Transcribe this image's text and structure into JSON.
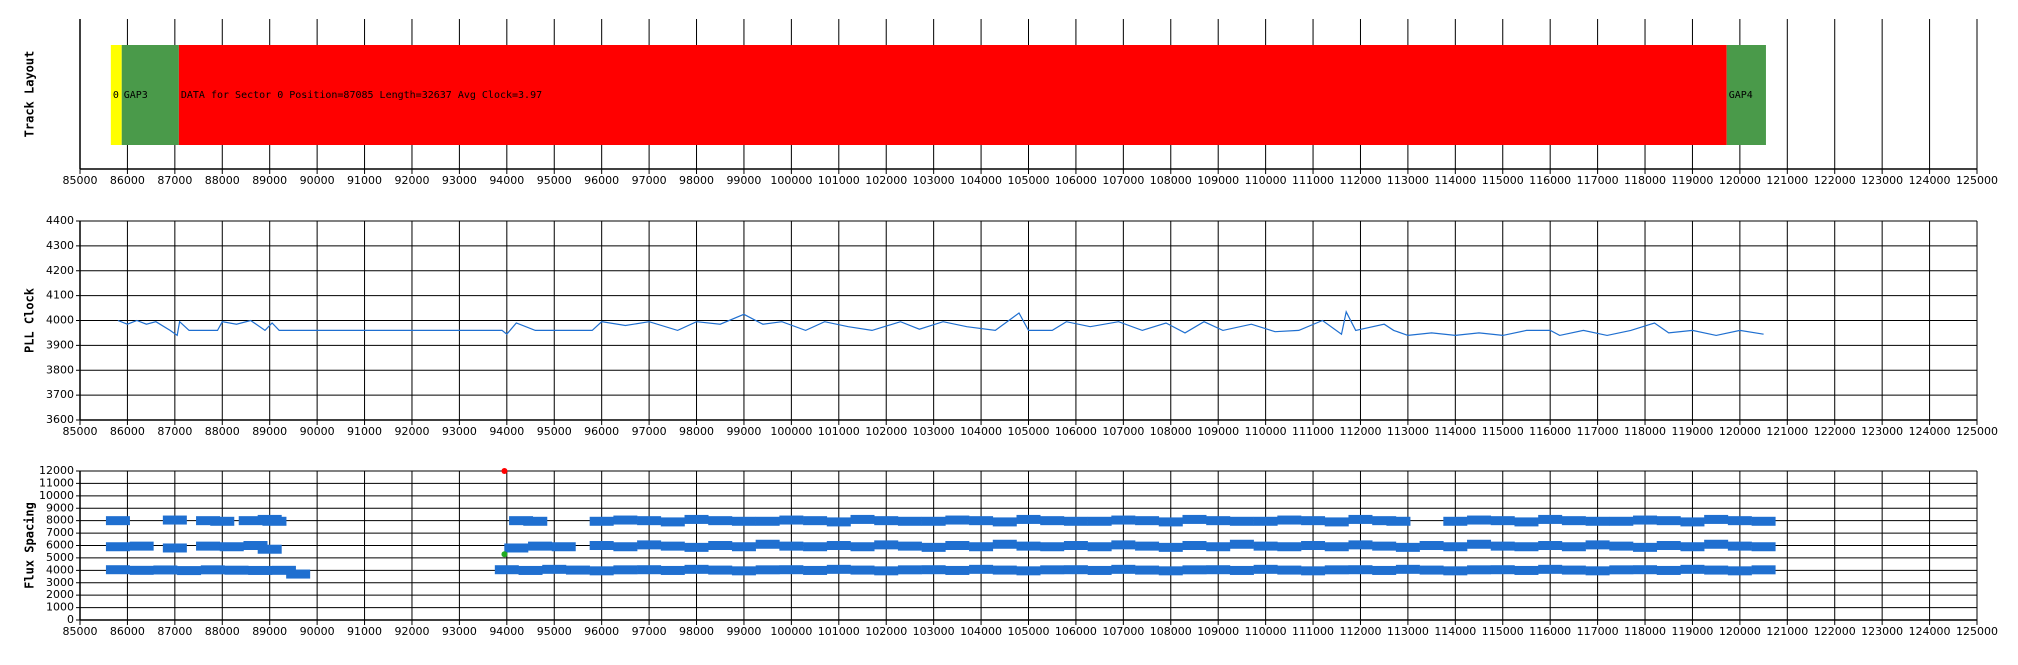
{
  "chart_data": [
    {
      "type": "timeline",
      "ylabel": "Track Layout",
      "grid": true,
      "xlim": [
        85000,
        125000
      ],
      "xticks": [
        85000,
        86000,
        87000,
        88000,
        89000,
        90000,
        91000,
        92000,
        93000,
        94000,
        95000,
        96000,
        97000,
        98000,
        99000,
        100000,
        101000,
        102000,
        103000,
        104000,
        105000,
        106000,
        107000,
        108000,
        109000,
        110000,
        111000,
        112000,
        113000,
        114000,
        115000,
        116000,
        117000,
        118000,
        119000,
        120000,
        121000,
        122000,
        123000,
        124000,
        125000
      ],
      "segments": [
        {
          "label": "0",
          "start": 85650,
          "end": 85880,
          "color": "#ffff00"
        },
        {
          "label": "GAP3",
          "start": 85880,
          "end": 87085,
          "color": "#4a9a4a"
        },
        {
          "label": "DATA for Sector 0 Position=87085 Length=32637 Avg Clock=3.97",
          "start": 87085,
          "end": 119722,
          "color": "#ff0000"
        },
        {
          "label": "GAP4",
          "start": 119722,
          "end": 120550,
          "color": "#4a9a4a"
        }
      ]
    },
    {
      "type": "line",
      "ylabel": "PLL Clock",
      "grid": true,
      "xlim": [
        85000,
        125000
      ],
      "xticks": [
        85000,
        86000,
        87000,
        88000,
        89000,
        90000,
        91000,
        92000,
        93000,
        94000,
        95000,
        96000,
        97000,
        98000,
        99000,
        100000,
        101000,
        102000,
        103000,
        104000,
        105000,
        106000,
        107000,
        108000,
        109000,
        110000,
        111000,
        112000,
        113000,
        114000,
        115000,
        116000,
        117000,
        118000,
        119000,
        120000,
        121000,
        122000,
        123000,
        124000,
        125000
      ],
      "ylim": [
        3600,
        4400
      ],
      "yticks": [
        3600,
        3700,
        3800,
        3900,
        4000,
        4100,
        4200,
        4300,
        4400
      ],
      "series": [
        {
          "color": "#1f6fd0",
          "x": [
            85800,
            86000,
            86200,
            86400,
            86600,
            86900,
            87050,
            87100,
            87300,
            87900,
            88000,
            88300,
            88600,
            88900,
            89050,
            89200,
            93900,
            94000,
            94200,
            94600,
            95800,
            96000,
            96500,
            97000,
            97600,
            98000,
            98500,
            99000,
            99400,
            99800,
            100300,
            100700,
            101200,
            101700,
            102300,
            102700,
            103200,
            103700,
            104300,
            104800,
            105000,
            105500,
            105800,
            106300,
            106900,
            107400,
            107900,
            108300,
            108700,
            109100,
            109700,
            110200,
            110700,
            111200,
            111600,
            111700,
            111900,
            112500,
            112700,
            113000,
            113500,
            114000,
            114500,
            115000,
            115500,
            116000,
            116200,
            116700,
            117200,
            117700,
            118200,
            118500,
            119000,
            119500,
            120000,
            120500
          ],
          "values": [
            4000,
            3985,
            4000,
            3985,
            3995,
            3960,
            3940,
            3995,
            3960,
            3960,
            3995,
            3985,
            4000,
            3960,
            3990,
            3960,
            3960,
            3945,
            3990,
            3960,
            3960,
            3995,
            3980,
            3995,
            3960,
            3995,
            3985,
            4025,
            3985,
            3995,
            3960,
            3995,
            3975,
            3960,
            3995,
            3965,
            3995,
            3975,
            3960,
            4030,
            3960,
            3960,
            3995,
            3975,
            3995,
            3960,
            3990,
            3950,
            3995,
            3960,
            3985,
            3955,
            3960,
            4000,
            3945,
            4035,
            3960,
            3985,
            3960,
            3940,
            3950,
            3940,
            3950,
            3940,
            3960,
            3960,
            3940,
            3960,
            3940,
            3960,
            3990,
            3950,
            3960,
            3940,
            3960,
            3945
          ]
        }
      ]
    },
    {
      "type": "scatter",
      "ylabel": "Flux Spacing",
      "grid": true,
      "xlim": [
        85000,
        125000
      ],
      "xticks": [
        85000,
        86000,
        87000,
        88000,
        89000,
        90000,
        91000,
        92000,
        93000,
        94000,
        95000,
        96000,
        97000,
        98000,
        99000,
        100000,
        101000,
        102000,
        103000,
        104000,
        105000,
        106000,
        107000,
        108000,
        109000,
        110000,
        111000,
        112000,
        113000,
        114000,
        115000,
        116000,
        117000,
        118000,
        119000,
        120000,
        121000,
        122000,
        123000,
        124000,
        125000
      ],
      "ylim": [
        0,
        12000
      ],
      "yticks": [
        0,
        1000,
        2000,
        3000,
        4000,
        5000,
        6000,
        7000,
        8000,
        9000,
        10000,
        11000,
        12000
      ],
      "series": [
        {
          "color": "#1f6fd0",
          "x": [
            85800,
            86300,
            86800,
            87300,
            87800,
            88300,
            88800,
            89300,
            89600,
            94000,
            94500,
            95000,
            95500,
            96000,
            96500,
            97000,
            97500,
            98000,
            98500,
            99000,
            99500,
            100000,
            100500,
            101000,
            101500,
            102000,
            102500,
            103000,
            103500,
            104000,
            104500,
            105000,
            105500,
            106000,
            106500,
            107000,
            107500,
            108000,
            108500,
            109000,
            109500,
            110000,
            110500,
            111000,
            111500,
            112000,
            112500,
            113000,
            113500,
            114000,
            114500,
            115000,
            115500,
            116000,
            116500,
            117000,
            117500,
            118000,
            118500,
            119000,
            119500,
            120000,
            120500
          ],
          "values": [
            4050,
            4000,
            4030,
            3980,
            4040,
            4010,
            3990,
            4000,
            3700,
            4050,
            3990,
            4080,
            4020,
            3960,
            4040,
            4050,
            3990,
            4080,
            4020,
            3960,
            4040,
            4050,
            3990,
            4080,
            4020,
            3960,
            4040,
            4050,
            3990,
            4080,
            4020,
            3960,
            4040,
            4050,
            3990,
            4080,
            4020,
            3960,
            4040,
            4050,
            3990,
            4080,
            4020,
            3960,
            4040,
            4050,
            3990,
            4080,
            4020,
            3960,
            4040,
            4050,
            3990,
            4080,
            4020,
            3960,
            4040,
            4050,
            3990,
            4080,
            4020,
            3960,
            4040
          ]
        },
        {
          "color": "#1f6fd0",
          "x": [
            85800,
            86300,
            87000,
            87700,
            88200,
            88700,
            89000,
            94200,
            94700,
            95200,
            96000,
            96500,
            97000,
            97500,
            98000,
            98500,
            99000,
            99500,
            100000,
            100500,
            101000,
            101500,
            102000,
            102500,
            103000,
            103500,
            104000,
            104500,
            105000,
            105500,
            106000,
            106500,
            107000,
            107500,
            108000,
            108500,
            109000,
            109500,
            110000,
            110500,
            111000,
            111500,
            112000,
            112500,
            113000,
            113500,
            114000,
            114500,
            115000,
            115500,
            116000,
            116500,
            117000,
            117500,
            118000,
            118500,
            119000,
            119500,
            120000,
            120500
          ],
          "values": [
            5900,
            5950,
            5800,
            5950,
            5900,
            6000,
            5700,
            5800,
            5950,
            5900,
            6000,
            5900,
            6050,
            5950,
            5850,
            6000,
            5900,
            6100,
            5950,
            5900,
            6000,
            5900,
            6050,
            5950,
            5850,
            6000,
            5900,
            6100,
            5950,
            5900,
            6000,
            5900,
            6050,
            5950,
            5850,
            6000,
            5900,
            6100,
            5950,
            5900,
            6000,
            5900,
            6050,
            5950,
            5850,
            6000,
            5900,
            6100,
            5950,
            5900,
            6000,
            5900,
            6050,
            5950,
            5850,
            6000,
            5900,
            6100,
            5950,
            5900
          ]
        },
        {
          "color": "#1f6fd0",
          "x": [
            85800,
            87000,
            87700,
            88000,
            88600,
            89000,
            89100,
            94300,
            94600,
            96000,
            96500,
            97000,
            97500,
            98000,
            98500,
            99000,
            99500,
            100000,
            100500,
            101000,
            101500,
            102000,
            102500,
            103000,
            103500,
            104000,
            104500,
            105000,
            105500,
            106000,
            106500,
            107000,
            107500,
            108000,
            108500,
            109000,
            109500,
            110000,
            110500,
            111000,
            111500,
            112000,
            112500,
            112800,
            114000,
            114500,
            115000,
            115500,
            116000,
            116500,
            117000,
            117500,
            118000,
            118500,
            119000,
            119500,
            120000,
            120500
          ],
          "values": [
            8000,
            8050,
            8000,
            7950,
            8000,
            8100,
            7950,
            8000,
            7950,
            7950,
            8050,
            8000,
            7900,
            8100,
            8000,
            7950,
            7950,
            8050,
            8000,
            7900,
            8100,
            8000,
            7950,
            7950,
            8050,
            8000,
            7900,
            8100,
            8000,
            7950,
            7950,
            8050,
            8000,
            7900,
            8100,
            8000,
            7950,
            7950,
            8050,
            8000,
            7900,
            8100,
            8000,
            7950,
            7950,
            8050,
            8000,
            7900,
            8100,
            8000,
            7950,
            7950,
            8050,
            8000,
            7900,
            8100,
            8000,
            7950
          ]
        },
        {
          "color": "#ff0000",
          "x": [
            93950
          ],
          "values": [
            12000
          ]
        },
        {
          "color": "#22aa22",
          "x": [
            93950
          ],
          "values": [
            5300
          ]
        }
      ]
    }
  ]
}
